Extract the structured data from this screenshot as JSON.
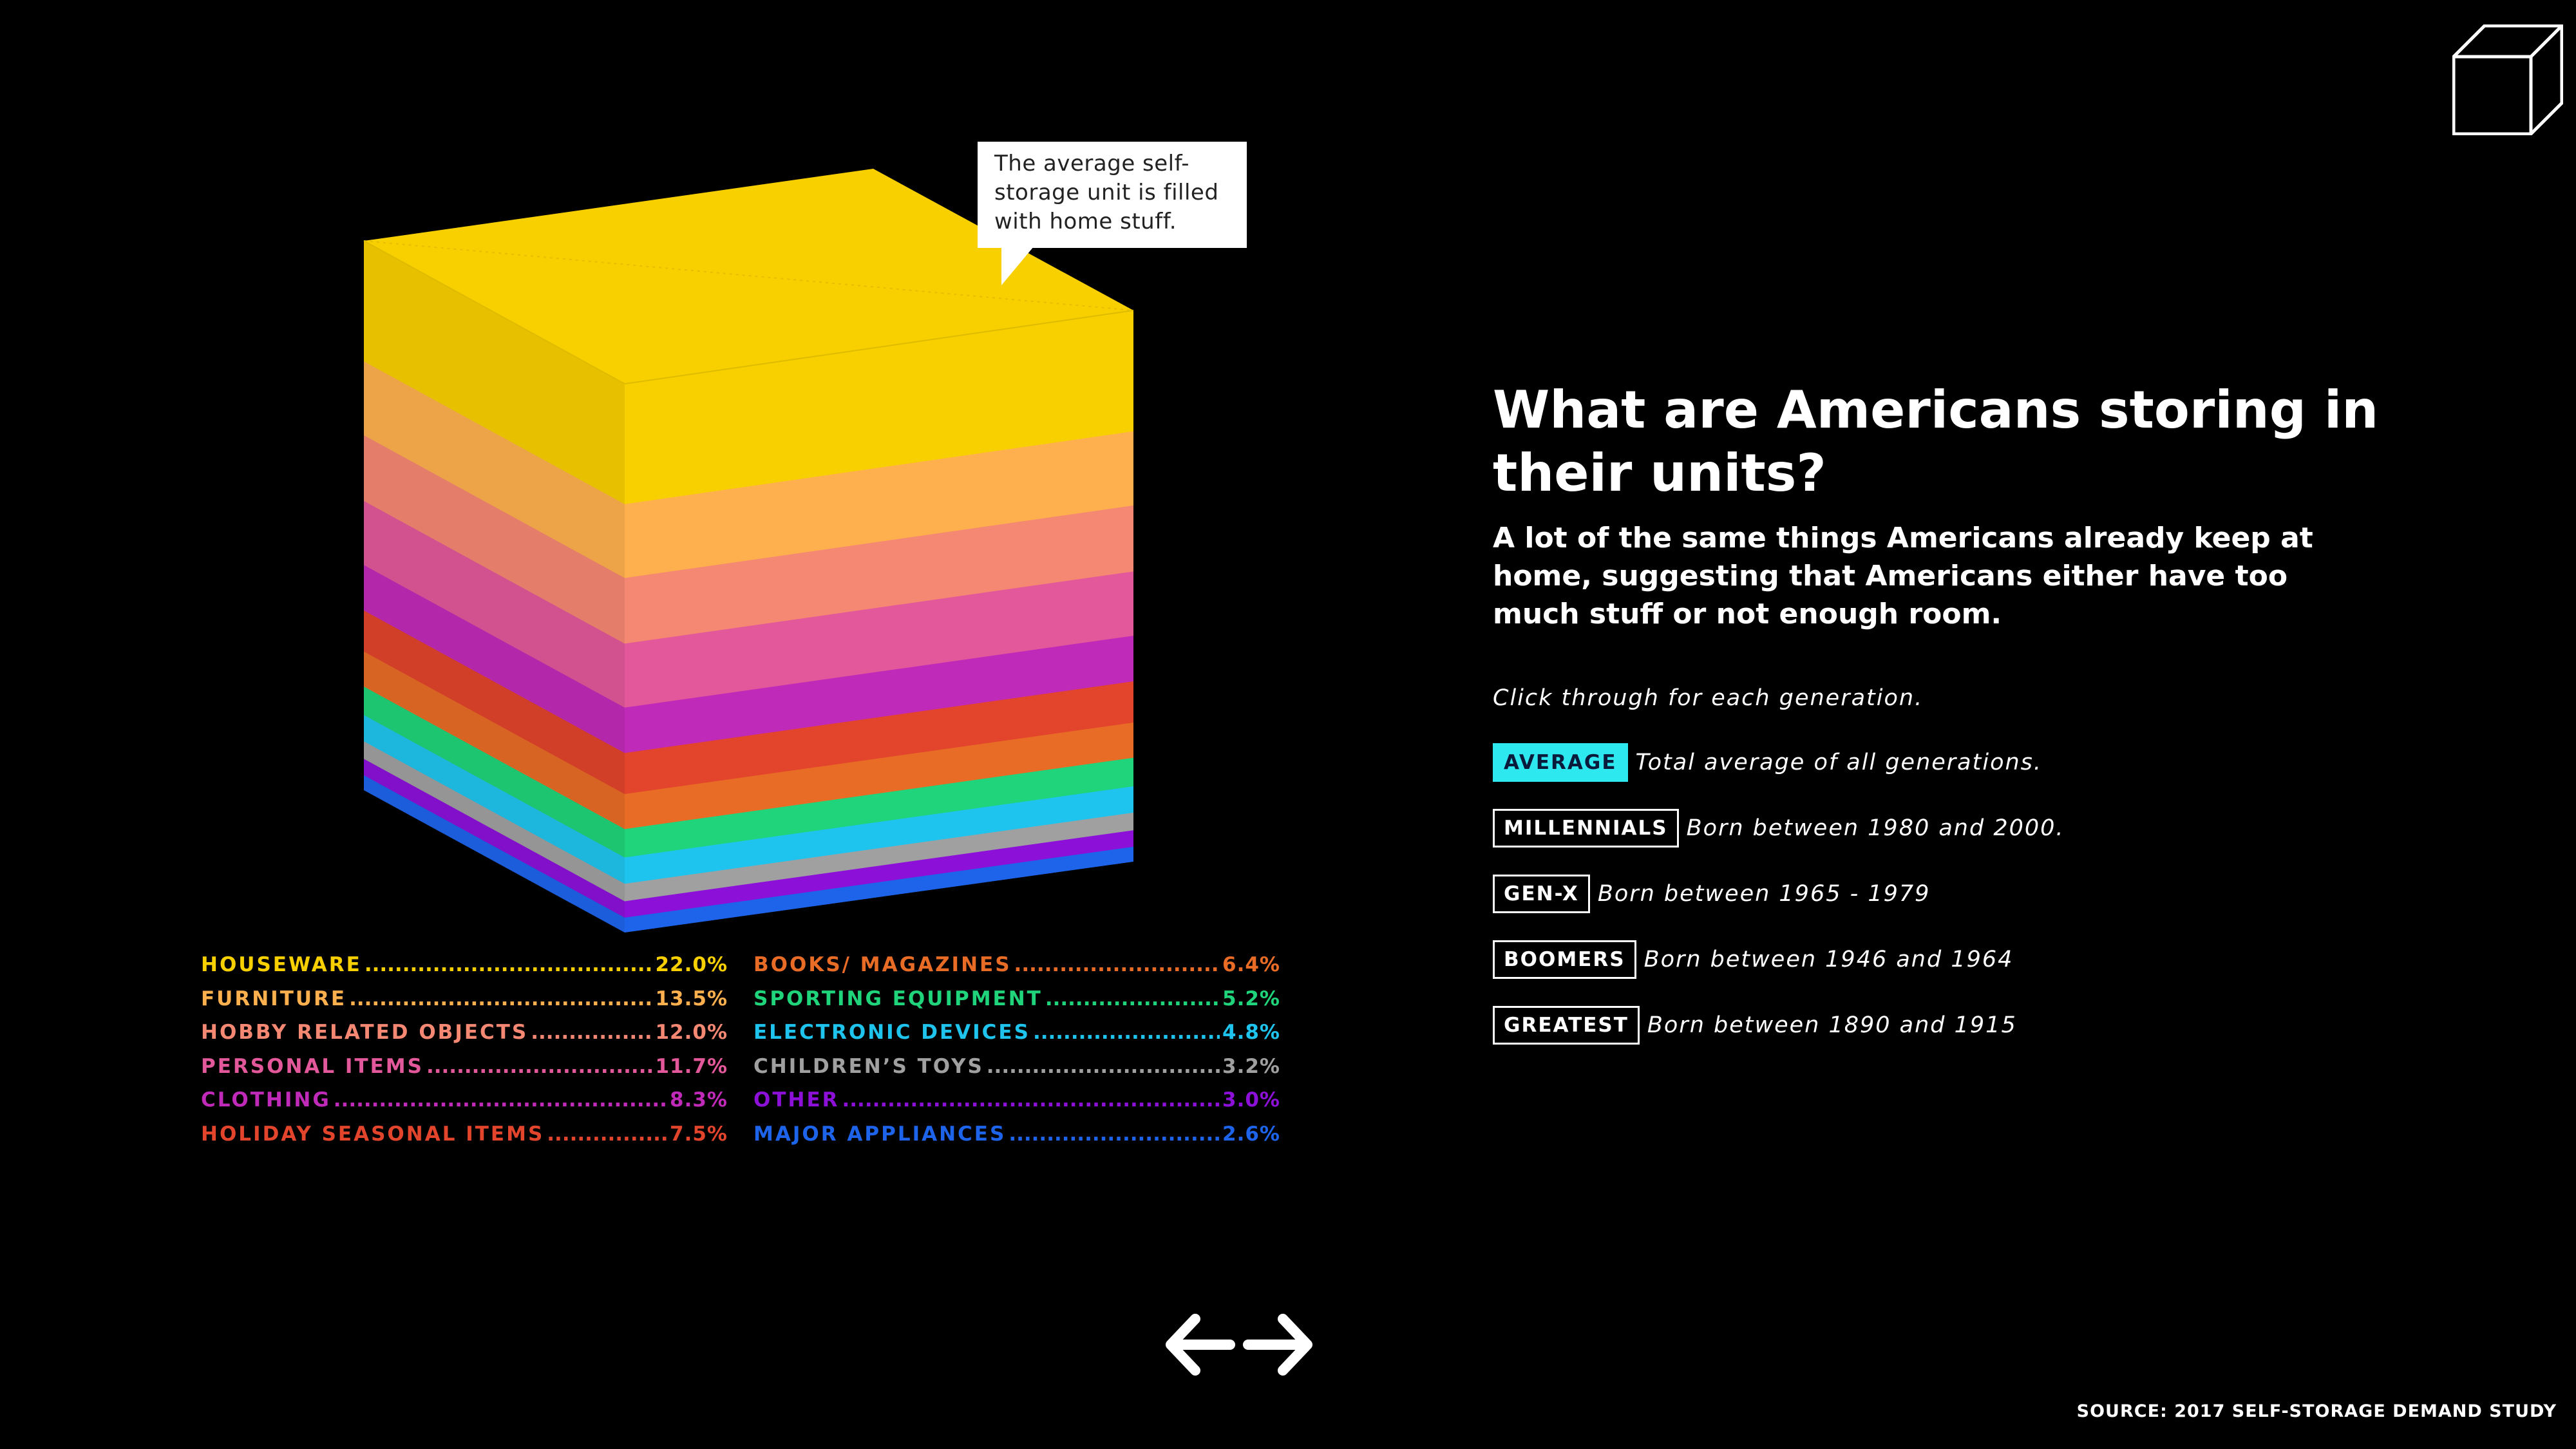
{
  "chart_data": {
    "type": "bar",
    "categories": [
      "HOUSEWARE",
      "FURNITURE",
      "HOBBY RELATED OBJECTS",
      "PERSONAL ITEMS",
      "CLOTHING",
      "HOLIDAY SEASONAL ITEMS",
      "BOOKS/ MAGAZINES",
      "SPORTING EQUIPMENT",
      "ELECTRONIC DEVICES",
      "CHILDREN’S TOYS",
      "OTHER",
      "MAJOR APPLIANCES"
    ],
    "values": [
      22.0,
      13.5,
      12.0,
      11.7,
      8.3,
      7.5,
      6.4,
      5.2,
      4.8,
      3.2,
      3.0,
      2.6
    ],
    "value_labels": [
      "22.0%",
      "13.5%",
      "12.0%",
      "11.7%",
      "8.3%",
      "7.5%",
      "6.4%",
      "5.2%",
      "4.8%",
      "3.2%",
      "3.0%",
      "2.6%"
    ],
    "colors": [
      "#f8d000",
      "#ffb04e",
      "#f58872",
      "#e2589a",
      "#c02ab8",
      "#e2442c",
      "#e86c26",
      "#1fd47a",
      "#1fc4ee",
      "#a0a0a0",
      "#8c10d8",
      "#1d64ea"
    ],
    "title": "What are Americans storing in their units?",
    "subtitle": "A lot of the same things Americans already keep at home, suggesting that Americans either have too much stuff or not enough room.",
    "annotation": "The average self-storage unit is filled with home stuff.",
    "source": "SOURCE: 2017 SELF-STORAGE DEMAND STUDY",
    "legend_placement": "bottom"
  },
  "instruction": "Click through for each generation.",
  "generations": [
    {
      "label": "AVERAGE",
      "desc": "Total average of all generations.",
      "active": true
    },
    {
      "label": "MILLENNIALS",
      "desc": "Born between 1980 and 2000.",
      "active": false
    },
    {
      "label": "GEN-X",
      "desc": "Born between 1965 - 1979",
      "active": false
    },
    {
      "label": "BOOMERS",
      "desc": "Born between 1946 and 1964",
      "active": false
    },
    {
      "label": "GREATEST",
      "desc": "Born between 1890 and 1915",
      "active": false
    }
  ],
  "icons": {
    "corner": "cube-outline-icon",
    "prev": "arrow-left-icon",
    "next": "arrow-right-icon"
  }
}
